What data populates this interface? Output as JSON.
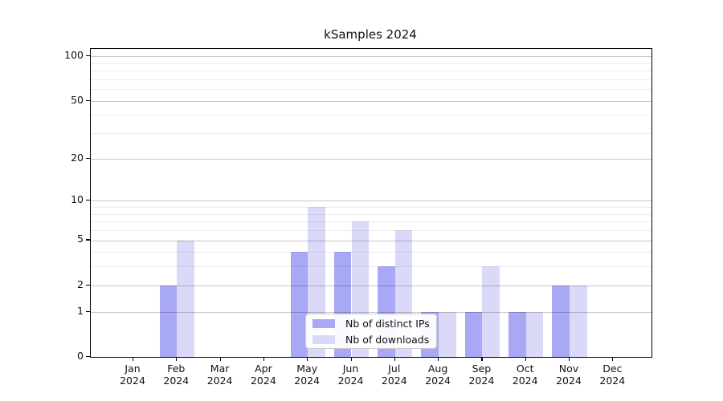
{
  "title": "kSamples 2024",
  "colors": {
    "distinct_ips": "#a8a8f5",
    "downloads": "#dadaf8",
    "grid_major": "#c6c6c6",
    "grid_minor": "#ececec",
    "axis": "#000000",
    "legend_border": "#cccccc"
  },
  "legend": {
    "items": [
      {
        "label": "Nb of distinct IPs",
        "color_key": "distinct_ips"
      },
      {
        "label": "Nb of downloads",
        "color_key": "downloads"
      }
    ]
  },
  "y_axis": {
    "major_ticks": [
      0,
      1,
      2,
      5,
      10,
      20,
      50,
      100
    ],
    "minor_ticks": [
      3,
      4,
      6,
      7,
      8,
      9,
      30,
      40,
      60,
      70,
      80,
      90
    ],
    "scale": "log10(1+x)"
  },
  "x_axis": {
    "months": [
      "Jan",
      "Feb",
      "Mar",
      "Apr",
      "May",
      "Jun",
      "Jul",
      "Aug",
      "Sep",
      "Oct",
      "Nov",
      "Dec"
    ],
    "year": "2024"
  },
  "chart_data": {
    "type": "bar",
    "title": "kSamples 2024",
    "categories": [
      "Jan 2024",
      "Feb 2024",
      "Mar 2024",
      "Apr 2024",
      "May 2024",
      "Jun 2024",
      "Jul 2024",
      "Aug 2024",
      "Sep 2024",
      "Oct 2024",
      "Nov 2024",
      "Dec 2024"
    ],
    "series": [
      {
        "name": "Nb of distinct IPs",
        "values": [
          0,
          2,
          0,
          0,
          4,
          4,
          3,
          1,
          1,
          1,
          2,
          0
        ]
      },
      {
        "name": "Nb of downloads",
        "values": [
          0,
          5,
          0,
          0,
          9,
          7,
          6,
          1,
          3,
          1,
          2,
          0
        ]
      }
    ],
    "xlabel": "",
    "ylabel": "",
    "yscale": "log10(1+x)",
    "ylim": [
      0,
      112
    ],
    "ytick_values": [
      0,
      1,
      2,
      5,
      10,
      20,
      50,
      100
    ],
    "grid": true,
    "legend_position": "lower center"
  }
}
